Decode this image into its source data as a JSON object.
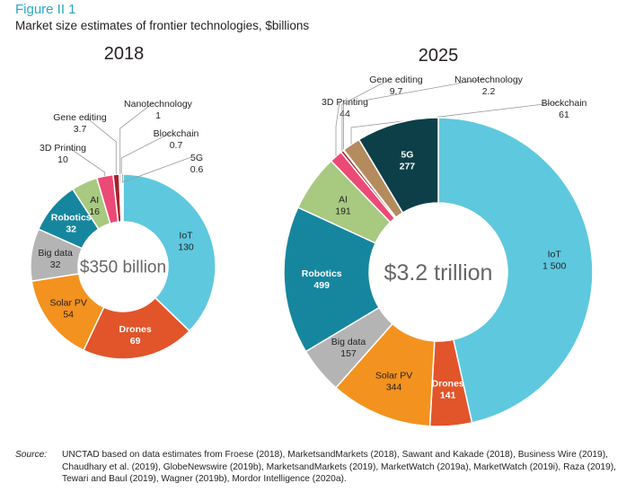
{
  "figure": {
    "label": "Figure II 1",
    "title": "Market size estimates of frontier technologies, $billions"
  },
  "chart_data": [
    {
      "type": "donut",
      "title": "2018",
      "center_label": "$350 billion",
      "categories": [
        "IoT",
        "Drones",
        "Solar PV",
        "Big data",
        "Robotics",
        "AI",
        "3D Printing",
        "Gene editing",
        "Nanotechnology",
        "Blockchain",
        "5G"
      ],
      "values": [
        130,
        69,
        54,
        32,
        32,
        16,
        10,
        3.7,
        1,
        0.7,
        0.6
      ],
      "value_labels": [
        "130",
        "69",
        "54",
        "32",
        "32",
        "16",
        "10",
        "3.7",
        "1",
        "0.7",
        "0.6"
      ],
      "colors": [
        "#5ec8de",
        "#e2542a",
        "#f3921f",
        "#b4b4b4",
        "#16869e",
        "#a7c980",
        "#ec4a76",
        "#a8222a",
        "#5a3520",
        "#b48b5c",
        "#0d3f48"
      ]
    },
    {
      "type": "donut",
      "title": "2025",
      "center_label": "$3.2 trillion",
      "categories": [
        "IoT",
        "Drones",
        "Solar PV",
        "Big data",
        "Robotics",
        "AI",
        "3D Printing",
        "Gene editing",
        "Nanotechnology",
        "Blockchain",
        "5G"
      ],
      "values": [
        1500,
        141,
        344,
        157,
        499,
        191,
        44,
        9.7,
        2.2,
        61,
        277
      ],
      "value_labels": [
        "1 500",
        "141",
        "344",
        "157",
        "499",
        "191",
        "44",
        "9.7",
        "2.2",
        "61",
        "277"
      ],
      "colors": [
        "#5ec8de",
        "#e2542a",
        "#f3921f",
        "#b4b4b4",
        "#16869e",
        "#a7c980",
        "#ec4a76",
        "#a8222a",
        "#5a3520",
        "#b48b5c",
        "#0d3f48"
      ]
    }
  ],
  "source": {
    "label": "Source:",
    "text": "UNCTAD based on data estimates from Froese (2018), MarketsandMarkets (2018), Sawant and Kakade (2018), Business Wire (2019), Chaudhary et al. (2019), GlobeNewswire (2019b), MarketsandMarkets (2019), MarketWatch (2019a), MarketWatch (2019i), Raza (2019), Tewari and Baul (2019), Wagner (2019b), Mordor Intelligence (2020a)."
  }
}
